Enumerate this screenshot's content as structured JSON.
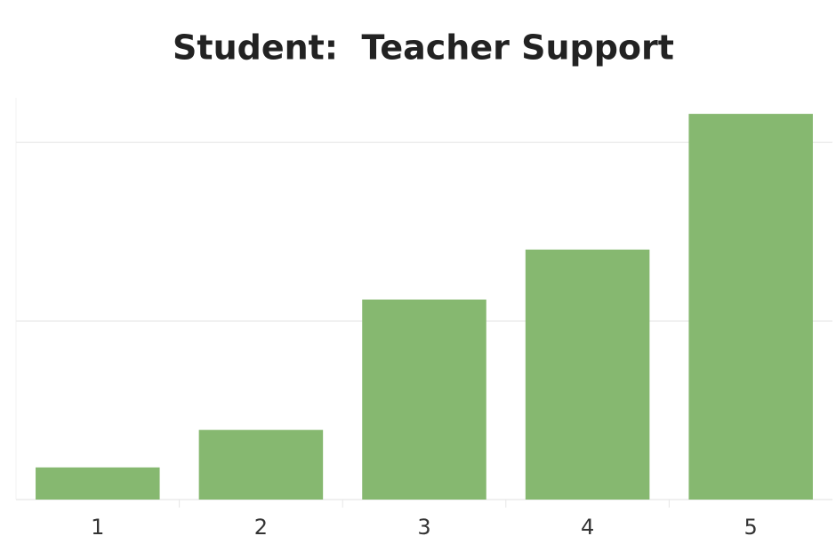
{
  "chart_data": {
    "type": "bar",
    "title": "Student:  Teacher Support",
    "categories": [
      "1",
      "2",
      "3",
      "4",
      "5"
    ],
    "values": [
      1.8,
      3.9,
      11.2,
      14,
      21.6
    ],
    "color": "#86b870",
    "ylim": [
      0,
      22.5
    ],
    "yticks": [
      0,
      10,
      20
    ],
    "grid": true
  }
}
